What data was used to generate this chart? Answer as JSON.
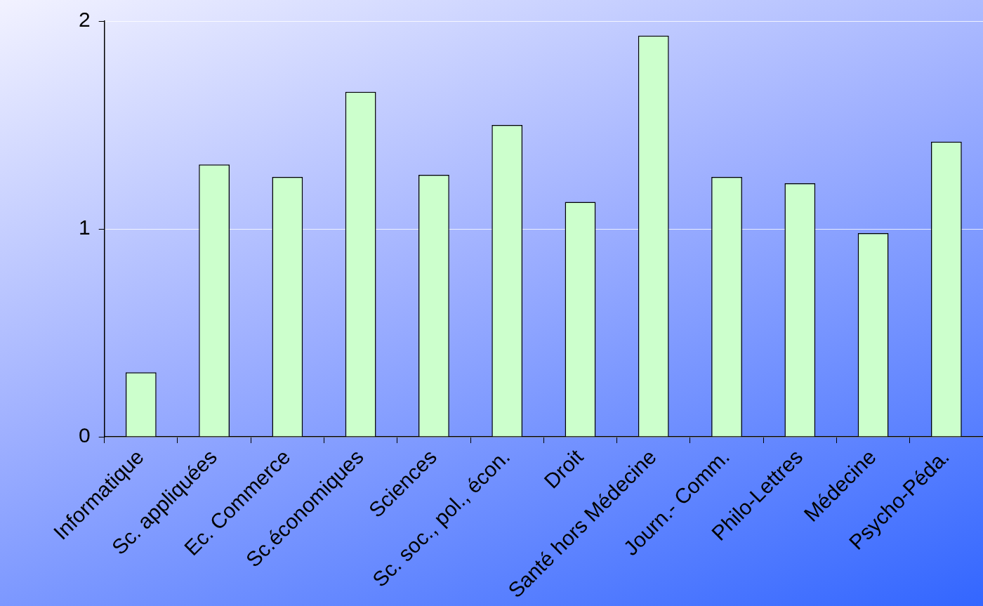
{
  "chart_data": {
    "type": "bar",
    "categories": [
      "Informatique",
      "Sc. appliquées",
      "Ec. Commerce",
      "Sc.économiques",
      "Sciences",
      "Sc. soc., pol., écon.",
      "Droit",
      "Santé hors Médecine",
      "Journ.- Comm.",
      "Philo-Lettres",
      "Médecine",
      "Psycho-Péda."
    ],
    "values": [
      0.31,
      1.31,
      1.25,
      1.66,
      1.26,
      1.5,
      1.13,
      1.93,
      1.25,
      1.22,
      0.98,
      1.42
    ],
    "color": "#ccffcc",
    "ylim": [
      0,
      2
    ],
    "yticks": [
      0,
      1,
      2
    ],
    "grid": "y",
    "legend": false
  }
}
